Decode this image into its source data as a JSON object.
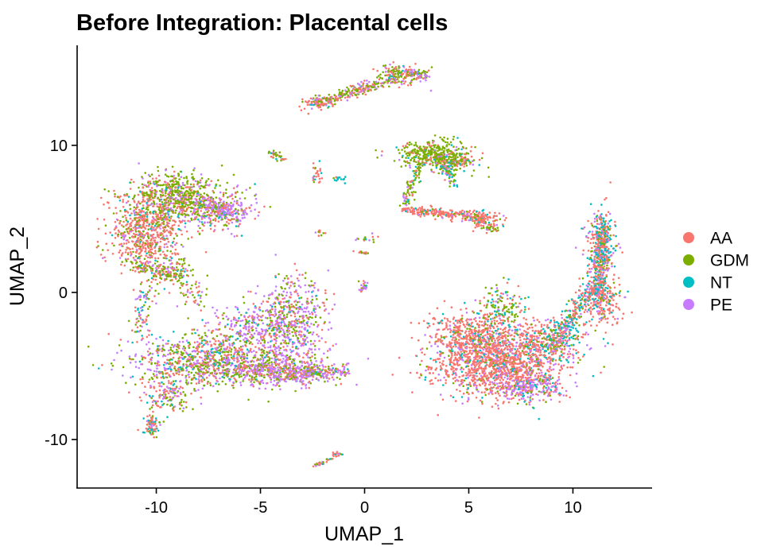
{
  "chart_data": {
    "type": "scatter",
    "title": "Before Integration: Placental cells",
    "xlabel": "UMAP_1",
    "ylabel": "UMAP_2",
    "xlim": [
      -13.8,
      13.8
    ],
    "ylim": [
      -13.3,
      16.8
    ],
    "x_ticks": [
      -10,
      -5,
      0,
      5,
      10
    ],
    "y_ticks": [
      -10,
      0,
      10
    ],
    "grid": false,
    "legend_position": "right",
    "series": [
      {
        "name": "AA",
        "color": "#F8766D"
      },
      {
        "name": "GDM",
        "color": "#7CAE00"
      },
      {
        "name": "NT",
        "color": "#00BFC4"
      },
      {
        "name": "PE",
        "color": "#C77CFF"
      }
    ],
    "clusters": [
      {
        "cx": -10.5,
        "cy": 4.2,
        "sx": 0.9,
        "sy": 1.3,
        "n": 700,
        "w": [
          0.65,
          0.2,
          0.05,
          0.1
        ]
      },
      {
        "cx": -9.0,
        "cy": 6.6,
        "sx": 1.0,
        "sy": 0.8,
        "n": 550,
        "w": [
          0.2,
          0.6,
          0.05,
          0.15
        ]
      },
      {
        "cx": -7.0,
        "cy": 5.6,
        "sx": 1.1,
        "sy": 0.6,
        "n": 300,
        "w": [
          0.3,
          0.25,
          0.05,
          0.4
        ]
      },
      {
        "cx": -9.2,
        "cy": 1.3,
        "sx": 0.5,
        "sy": 0.5,
        "n": 100,
        "w": [
          0.3,
          0.5,
          0.05,
          0.15
        ]
      },
      {
        "cx": -7.5,
        "cy": -4.6,
        "sx": 2.0,
        "sy": 0.9,
        "n": 900,
        "w": [
          0.3,
          0.3,
          0.1,
          0.3
        ]
      },
      {
        "cx": -4.2,
        "cy": -5.3,
        "sx": 1.3,
        "sy": 0.5,
        "n": 500,
        "w": [
          0.25,
          0.25,
          0.05,
          0.45
        ]
      },
      {
        "cx": -3.5,
        "cy": -2.0,
        "sx": 0.8,
        "sy": 1.5,
        "n": 550,
        "w": [
          0.25,
          0.25,
          0.05,
          0.45
        ]
      },
      {
        "cx": -5.5,
        "cy": -2.5,
        "sx": 1.0,
        "sy": 0.8,
        "n": 250,
        "w": [
          0.2,
          0.2,
          0.1,
          0.5
        ]
      },
      {
        "cx": -9.5,
        "cy": -7.0,
        "sx": 0.6,
        "sy": 0.7,
        "n": 150,
        "w": [
          0.4,
          0.3,
          0.1,
          0.2
        ]
      },
      {
        "cx": -10.2,
        "cy": -9.2,
        "sx": 0.2,
        "sy": 0.4,
        "n": 40,
        "w": [
          0.5,
          0.1,
          0.3,
          0.1
        ]
      },
      {
        "cx": 6.4,
        "cy": -4.8,
        "sx": 1.6,
        "sy": 1.1,
        "n": 1400,
        "w": [
          0.7,
          0.08,
          0.07,
          0.15
        ]
      },
      {
        "cx": 5.0,
        "cy": -2.8,
        "sx": 1.1,
        "sy": 0.7,
        "n": 400,
        "w": [
          0.7,
          0.1,
          0.1,
          0.1
        ]
      },
      {
        "cx": 6.5,
        "cy": -1.0,
        "sx": 0.6,
        "sy": 0.7,
        "n": 150,
        "w": [
          0.3,
          0.45,
          0.15,
          0.1
        ]
      },
      {
        "cx": 7.8,
        "cy": -6.4,
        "sx": 0.8,
        "sy": 0.5,
        "n": 250,
        "w": [
          0.3,
          0.1,
          0.1,
          0.5
        ]
      },
      {
        "cx": 8.8,
        "cy": -3.2,
        "sx": 1.0,
        "sy": 0.7,
        "n": 300,
        "w": [
          0.4,
          0.2,
          0.2,
          0.2
        ]
      },
      {
        "cx": 11.4,
        "cy": -0.4,
        "sx": 0.5,
        "sy": 0.8,
        "n": 250,
        "w": [
          0.7,
          0.1,
          0.1,
          0.1
        ]
      },
      {
        "cx": 11.3,
        "cy": 3.2,
        "sx": 0.35,
        "sy": 1.2,
        "n": 250,
        "w": [
          0.4,
          0.15,
          0.3,
          0.15
        ]
      },
      {
        "cx": 3.2,
        "cy": 9.4,
        "sx": 0.8,
        "sy": 0.45,
        "n": 350,
        "w": [
          0.15,
          0.75,
          0.05,
          0.05
        ]
      },
      {
        "cx": 4.3,
        "cy": 8.9,
        "sx": 0.5,
        "sy": 0.4,
        "n": 150,
        "w": [
          0.3,
          0.5,
          0.1,
          0.1
        ]
      },
      {
        "cx": 5.6,
        "cy": 5.0,
        "sx": 0.5,
        "sy": 0.3,
        "n": 100,
        "w": [
          0.7,
          0.1,
          0.1,
          0.1
        ]
      },
      {
        "cx": 1.8,
        "cy": 14.8,
        "sx": 0.5,
        "sy": 0.35,
        "n": 150,
        "w": [
          0.3,
          0.45,
          0.05,
          0.2
        ]
      },
      {
        "cx": -2.2,
        "cy": 12.9,
        "sx": 0.4,
        "sy": 0.25,
        "n": 80,
        "w": [
          0.6,
          0.2,
          0.1,
          0.1
        ]
      },
      {
        "cx": -2.3,
        "cy": 8.1,
        "sx": 0.15,
        "sy": 0.3,
        "n": 25,
        "w": [
          0.6,
          0.1,
          0.2,
          0.1
        ]
      },
      {
        "cx": -1.2,
        "cy": 7.7,
        "sx": 0.25,
        "sy": 0.12,
        "n": 15,
        "w": [
          0.1,
          0.1,
          0.7,
          0.1
        ]
      },
      {
        "cx": -2.1,
        "cy": 4.0,
        "sx": 0.1,
        "sy": 0.15,
        "n": 10,
        "w": [
          0.6,
          0.2,
          0.1,
          0.1
        ]
      },
      {
        "cx": 0.1,
        "cy": 3.6,
        "sx": 0.3,
        "sy": 0.15,
        "n": 15,
        "w": [
          0.4,
          0.3,
          0.1,
          0.2
        ]
      },
      {
        "cx": -0.1,
        "cy": 2.7,
        "sx": 0.15,
        "sy": 0.1,
        "n": 15,
        "w": [
          0.5,
          0.3,
          0.1,
          0.1
        ]
      },
      {
        "cx": 0.0,
        "cy": 0.6,
        "sx": 0.1,
        "sy": 0.15,
        "n": 10,
        "w": [
          0.2,
          0.1,
          0.1,
          0.6
        ]
      },
      {
        "cx": -4.2,
        "cy": 9.3,
        "sx": 0.2,
        "sy": 0.2,
        "n": 15,
        "w": [
          0.3,
          0.5,
          0.1,
          0.1
        ]
      },
      {
        "cx": -8.2,
        "cy": 0.0,
        "sx": 0.3,
        "sy": 0.5,
        "n": 40,
        "w": [
          0.3,
          0.4,
          0.1,
          0.2
        ]
      }
    ],
    "paths": [
      {
        "x0": -2.2,
        "y0": 12.9,
        "x1": 1.5,
        "y1": 14.6,
        "n": 220,
        "sd": 0.18,
        "w": [
          0.3,
          0.45,
          0.05,
          0.2
        ]
      },
      {
        "x0": 2.0,
        "y0": 15.0,
        "x1": 3.0,
        "y1": 14.7,
        "n": 60,
        "sd": 0.15,
        "w": [
          0.2,
          0.3,
          0.05,
          0.45
        ]
      },
      {
        "x0": 3.8,
        "y0": 8.6,
        "x1": 4.3,
        "y1": 7.3,
        "n": 50,
        "sd": 0.12,
        "w": [
          0.1,
          0.3,
          0.5,
          0.1
        ]
      },
      {
        "x0": 2.7,
        "y0": 8.8,
        "x1": 1.9,
        "y1": 6.0,
        "n": 90,
        "sd": 0.15,
        "w": [
          0.2,
          0.6,
          0.1,
          0.1
        ]
      },
      {
        "x0": 1.8,
        "y0": 5.6,
        "x1": 5.3,
        "y1": 5.2,
        "n": 200,
        "sd": 0.14,
        "w": [
          0.8,
          0.05,
          0.05,
          0.1
        ]
      },
      {
        "x0": 5.3,
        "y0": 5.2,
        "x1": 6.2,
        "y1": 4.2,
        "n": 60,
        "sd": 0.15,
        "w": [
          0.4,
          0.4,
          0.1,
          0.1
        ]
      },
      {
        "x0": -7.5,
        "y0": 6.1,
        "x1": -5.9,
        "y1": 5.0,
        "n": 120,
        "sd": 0.25,
        "w": [
          0.15,
          0.15,
          0.05,
          0.65
        ]
      },
      {
        "x0": -11.0,
        "y0": 2.0,
        "x1": -9.5,
        "y1": 1.2,
        "n": 100,
        "sd": 0.3,
        "w": [
          0.4,
          0.4,
          0.05,
          0.15
        ]
      },
      {
        "x0": -10.5,
        "y0": 0.5,
        "x1": -10.8,
        "y1": -3.0,
        "n": 80,
        "sd": 0.25,
        "w": [
          0.3,
          0.3,
          0.2,
          0.2
        ]
      },
      {
        "x0": -10.3,
        "y0": -8.5,
        "x1": -10.1,
        "y1": -9.6,
        "n": 40,
        "sd": 0.1,
        "w": [
          0.5,
          0.1,
          0.3,
          0.1
        ]
      },
      {
        "x0": -3.8,
        "y0": -5.6,
        "x1": -0.8,
        "y1": -5.3,
        "n": 160,
        "sd": 0.2,
        "w": [
          0.2,
          0.3,
          0.05,
          0.45
        ]
      },
      {
        "x0": 9.0,
        "y0": -3.5,
        "x1": 11.3,
        "y1": 1.0,
        "n": 300,
        "sd": 0.3,
        "w": [
          0.35,
          0.15,
          0.35,
          0.15
        ]
      },
      {
        "x0": 11.3,
        "y0": 1.0,
        "x1": 11.5,
        "y1": 5.0,
        "n": 200,
        "sd": 0.2,
        "w": [
          0.4,
          0.15,
          0.3,
          0.15
        ]
      },
      {
        "x0": -2.4,
        "y0": -11.8,
        "x1": -1.1,
        "y1": -10.9,
        "n": 40,
        "sd": 0.08,
        "w": [
          0.6,
          0.2,
          0.1,
          0.1
        ]
      },
      {
        "x0": -4.5,
        "y0": 9.6,
        "x1": -3.9,
        "y1": 9.0,
        "n": 20,
        "sd": 0.05,
        "w": [
          0.3,
          0.5,
          0.1,
          0.1
        ]
      },
      {
        "x0": 0.1,
        "y0": 0.4,
        "x1": -0.3,
        "y1": 0.0,
        "n": 15,
        "sd": 0.06,
        "w": [
          0.2,
          0.1,
          0.1,
          0.6
        ]
      }
    ]
  }
}
